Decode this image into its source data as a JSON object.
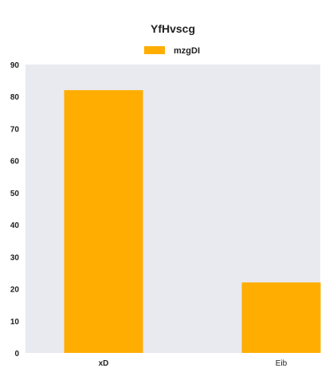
{
  "chart_data": {
    "type": "bar",
    "title": "YfHvscg",
    "categories": [
      "xD",
      "Eib"
    ],
    "series": [
      {
        "name": "mzgDI",
        "values": [
          82,
          22
        ]
      }
    ],
    "ylim": [
      0,
      90
    ],
    "yticks": [
      0,
      10,
      20,
      30,
      40,
      50,
      60,
      70,
      80,
      90
    ],
    "xlabel": "",
    "ylabel": "",
    "grid": false,
    "legend": "top-center",
    "colors": {
      "bar": "#ffad00",
      "plot_bg": "#e9e9f0",
      "text": "#222222"
    }
  }
}
